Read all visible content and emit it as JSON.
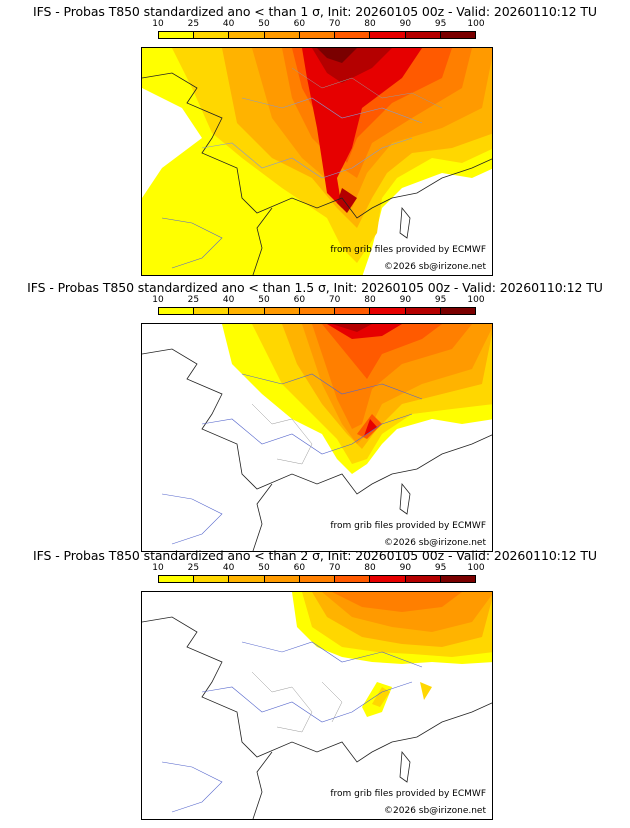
{
  "colorbar": {
    "labels": [
      "10",
      "25",
      "40",
      "50",
      "60",
      "70",
      "80",
      "90",
      "95",
      "100"
    ],
    "colors": [
      "#ffff00",
      "#ffd700",
      "#ffb300",
      "#ff9a00",
      "#ff7f00",
      "#ff5a00",
      "#e60000",
      "#b40000",
      "#7a0000"
    ]
  },
  "panels": [
    {
      "title": "IFS - Probas T850  standardized ano < than 1 σ, Init: 20260105 00z - Valid: 20260110:12 TU",
      "source": "from grib files provided by ECMWF",
      "copyright": "©2026 sb@irizone.net"
    },
    {
      "title": "IFS - Probas T850  standardized ano < than 1.5 σ, Init: 20260105 00z - Valid: 20260110:12 TU",
      "source": "from grib files provided by ECMWF",
      "copyright": "©2026 sb@irizone.net"
    },
    {
      "title": "IFS - Probas T850  standardized ano < than 2 σ, Init: 20260105 00z - Valid: 20260110:12 TU",
      "source": "from grib files provided by ECMWF",
      "copyright": "©2026 sb@irizone.net"
    }
  ]
}
